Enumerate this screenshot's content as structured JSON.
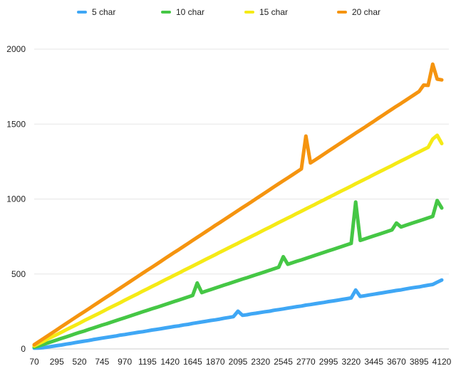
{
  "chart_data": {
    "type": "line",
    "title": "",
    "xlabel": "",
    "ylabel": "",
    "x": [
      70,
      115,
      160,
      205,
      250,
      295,
      340,
      385,
      430,
      475,
      520,
      565,
      610,
      655,
      700,
      745,
      790,
      835,
      880,
      925,
      970,
      1015,
      1060,
      1105,
      1150,
      1195,
      1240,
      1285,
      1330,
      1375,
      1420,
      1465,
      1510,
      1555,
      1600,
      1645,
      1690,
      1735,
      1780,
      1825,
      1870,
      1915,
      1960,
      2005,
      2050,
      2095,
      2140,
      2185,
      2230,
      2275,
      2320,
      2365,
      2410,
      2455,
      2500,
      2545,
      2590,
      2635,
      2680,
      2725,
      2770,
      2815,
      2860,
      2905,
      2950,
      2995,
      3040,
      3085,
      3130,
      3175,
      3220,
      3265,
      3310,
      3355,
      3400,
      3445,
      3490,
      3535,
      3580,
      3625,
      3670,
      3715,
      3760,
      3805,
      3850,
      3895,
      3940,
      3985,
      4030,
      4075,
      4120
    ],
    "x_tick_labels": [
      "70",
      "295",
      "520",
      "745",
      "970",
      "1195",
      "1420",
      "1645",
      "1870",
      "2095",
      "2320",
      "2545",
      "2770",
      "2995",
      "3220",
      "3445",
      "3670",
      "3895",
      "4120"
    ],
    "y_ticks": [
      0,
      500,
      1000,
      1500,
      2000
    ],
    "ylim": [
      0,
      2000
    ],
    "grid": true,
    "legend_position": "top",
    "series": [
      {
        "name": "5 char",
        "color": "#3fa7f5",
        "values": [
          5,
          6,
          8,
          13,
          17,
          22,
          26,
          32,
          36,
          42,
          47,
          52,
          56,
          62,
          67,
          72,
          77,
          81,
          86,
          92,
          96,
          101,
          106,
          111,
          115,
          120,
          126,
          130,
          135,
          140,
          145,
          150,
          154,
          160,
          164,
          170,
          175,
          180,
          185,
          190,
          194,
          199,
          205,
          210,
          215,
          218,
          224,
          228,
          234,
          238,
          243,
          248,
          252,
          258,
          262,
          267,
          272,
          277,
          282,
          286,
          292,
          296,
          301,
          306,
          310,
          316,
          320,
          325,
          330,
          335,
          340,
          345,
          350,
          355,
          360,
          365,
          370,
          375,
          380,
          385,
          390,
          394,
          400,
          405,
          410,
          414,
          420,
          425,
          430,
          445,
          460
        ]
      },
      {
        "name": "10 char",
        "color": "#45c745",
        "values": [
          12,
          20,
          30,
          40,
          50,
          60,
          70,
          80,
          90,
          100,
          110,
          119,
          129,
          139,
          149,
          159,
          168,
          178,
          188,
          198,
          208,
          218,
          228,
          238,
          248,
          258,
          268,
          277,
          287,
          297,
          307,
          317,
          327,
          337,
          347,
          357,
          367,
          376,
          386,
          396,
          406,
          416,
          426,
          436,
          446,
          456,
          466,
          475,
          485,
          495,
          505,
          515,
          525,
          535,
          545,
          555,
          565,
          575,
          585,
          594,
          604,
          614,
          624,
          634,
          644,
          654,
          664,
          674,
          684,
          694,
          704,
          714,
          724,
          734,
          744,
          754,
          764,
          774,
          784,
          794,
          804,
          814,
          824,
          834,
          844,
          854,
          864,
          874,
          884,
          900,
          940
        ]
      },
      {
        "name": "15 char",
        "color": "#f5ea16",
        "values": [
          20,
          35,
          50,
          66,
          81,
          96,
          111,
          127,
          142,
          157,
          172,
          188,
          203,
          218,
          233,
          248,
          264,
          279,
          294,
          309,
          325,
          340,
          355,
          370,
          386,
          401,
          416,
          431,
          447,
          462,
          477,
          492,
          507,
          523,
          538,
          553,
          568,
          584,
          599,
          614,
          629,
          645,
          660,
          675,
          690,
          705,
          721,
          736,
          751,
          766,
          782,
          797,
          812,
          827,
          843,
          858,
          873,
          888,
          904,
          919,
          934,
          949,
          964,
          980,
          995,
          1010,
          1025,
          1041,
          1056,
          1071,
          1086,
          1102,
          1117,
          1132,
          1147,
          1163,
          1178,
          1193,
          1208,
          1223,
          1239,
          1254,
          1269,
          1284,
          1300,
          1315,
          1330,
          1345,
          1361,
          1376,
          1370
        ]
      },
      {
        "name": "20 char",
        "color": "#f5940f",
        "values": [
          28,
          48,
          68,
          88,
          108,
          128,
          148,
          168,
          188,
          208,
          228,
          247,
          267,
          287,
          307,
          327,
          347,
          366,
          386,
          406,
          426,
          446,
          466,
          486,
          506,
          526,
          545,
          565,
          585,
          605,
          625,
          645,
          664,
          684,
          704,
          724,
          744,
          764,
          784,
          804,
          824,
          843,
          863,
          883,
          903,
          923,
          943,
          962,
          982,
          1002,
          1022,
          1042,
          1062,
          1082,
          1102,
          1122,
          1141,
          1161,
          1181,
          1201,
          1221,
          1241,
          1260,
          1280,
          1300,
          1320,
          1340,
          1360,
          1380,
          1400,
          1420,
          1440,
          1459,
          1479,
          1499,
          1519,
          1539,
          1559,
          1579,
          1599,
          1619,
          1638,
          1658,
          1678,
          1698,
          1718,
          1738,
          1758,
          1778,
          1800,
          1795
        ]
      }
    ],
    "spikes": {
      "5 char": [
        [
          2095,
          252
        ],
        [
          3265,
          393
        ]
      ],
      "10 char": [
        [
          1690,
          440
        ],
        [
          2545,
          615
        ],
        [
          3265,
          980
        ],
        [
          3670,
          840
        ],
        [
          4075,
          990
        ]
      ],
      "15 char": [
        [
          4030,
          1400
        ],
        [
          4075,
          1425
        ]
      ],
      "20 char": [
        [
          2770,
          1420
        ],
        [
          3940,
          1760
        ],
        [
          4030,
          1900
        ]
      ]
    }
  }
}
